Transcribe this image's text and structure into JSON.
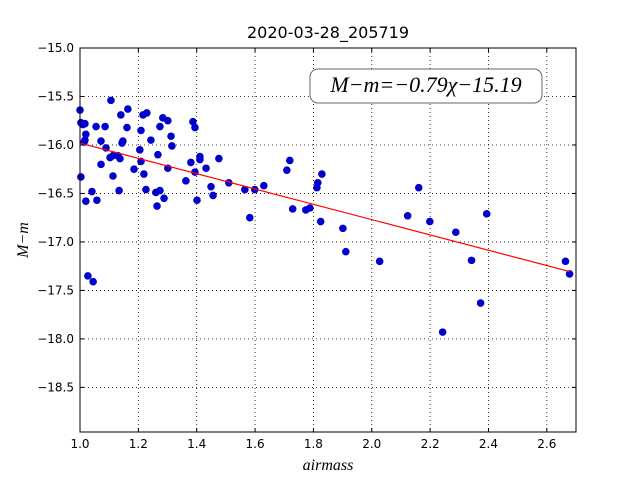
{
  "chart_data": {
    "type": "scatter",
    "title": "2020-03-28_205719",
    "xlabel": "airmass",
    "ylabel": "M−m",
    "annotation": "M−m=−0.79χ−15.19",
    "x": [
      1.0,
      1.003,
      1.01,
      1.017,
      1.02,
      1.017,
      1.014,
      1.003,
      1.02,
      1.027,
      1.045,
      1.041,
      1.055,
      1.058,
      1.072,
      1.072,
      1.086,
      1.089,
      1.103,
      1.106,
      1.113,
      1.113,
      1.13,
      1.137,
      1.134,
      1.14,
      1.144,
      1.147,
      1.161,
      1.164,
      1.185,
      1.205,
      1.209,
      1.209,
      1.216,
      1.229,
      1.219,
      1.226,
      1.243,
      1.26,
      1.264,
      1.274,
      1.267,
      1.274,
      1.284,
      1.288,
      1.301,
      1.301,
      1.312,
      1.315,
      1.363,
      1.38,
      1.387,
      1.394,
      1.394,
      1.401,
      1.411,
      1.411,
      1.432,
      1.449,
      1.456,
      1.476,
      1.51,
      1.565,
      1.582,
      1.599,
      1.63,
      1.709,
      1.719,
      1.729,
      1.774,
      1.788,
      1.812,
      1.815,
      1.825,
      1.829,
      1.901,
      1.911,
      2.027,
      2.123,
      2.161,
      2.199,
      2.243,
      2.288,
      2.342,
      2.373,
      2.394,
      2.664,
      2.678
    ],
    "values": [
      -15.64,
      -15.77,
      -15.79,
      -15.78,
      -15.89,
      -15.95,
      -15.97,
      -16.33,
      -16.58,
      -17.35,
      -17.41,
      -16.48,
      -15.81,
      -16.57,
      -16.2,
      -15.96,
      -15.81,
      -16.03,
      -16.13,
      -15.54,
      -16.11,
      -16.32,
      -16.11,
      -16.14,
      -16.47,
      -15.69,
      -15.98,
      -15.96,
      -15.82,
      -15.63,
      -16.25,
      -16.05,
      -16.17,
      -15.85,
      -15.69,
      -15.67,
      -16.3,
      -16.46,
      -15.95,
      -16.49,
      -16.63,
      -16.47,
      -16.1,
      -15.81,
      -15.72,
      -16.55,
      -15.75,
      -16.24,
      -15.91,
      -16.01,
      -16.37,
      -16.18,
      -15.76,
      -15.82,
      -16.28,
      -16.57,
      -16.12,
      -16.15,
      -16.24,
      -16.43,
      -16.52,
      -16.14,
      -16.39,
      -16.46,
      -16.75,
      -16.46,
      -16.42,
      -16.26,
      -16.16,
      -16.66,
      -16.67,
      -16.65,
      -16.44,
      -16.39,
      -16.79,
      -16.3,
      -16.86,
      -17.1,
      -17.2,
      -16.73,
      -16.44,
      -16.79,
      -17.93,
      -16.9,
      -17.19,
      -17.63,
      -16.71,
      -17.2,
      -17.33
    ],
    "color": "#0000cc",
    "fit": {
      "x": [
        1.0,
        2.68
      ],
      "values": [
        -15.98,
        -17.307
      ],
      "color": "#ff0000"
    },
    "xlim": [
      1.0,
      2.7
    ],
    "ylim": [
      -15.0,
      -18.96
    ],
    "xticks": [
      {
        "value": 1.0,
        "label": "1.0"
      },
      {
        "value": 1.2,
        "label": "1.2"
      },
      {
        "value": 1.4,
        "label": "1.4"
      },
      {
        "value": 1.6,
        "label": "1.6"
      },
      {
        "value": 1.8,
        "label": "1.8"
      },
      {
        "value": 2.0,
        "label": "2.0"
      },
      {
        "value": 2.2,
        "label": "2.2"
      },
      {
        "value": 2.4,
        "label": "2.4"
      },
      {
        "value": 2.6,
        "label": "2.6"
      }
    ],
    "yticks": [
      {
        "value": -15.0,
        "label": "−15.0"
      },
      {
        "value": -15.5,
        "label": "−15.5"
      },
      {
        "value": -16.0,
        "label": "−16.0"
      },
      {
        "value": -16.5,
        "label": "−16.5"
      },
      {
        "value": -17.0,
        "label": "−17.0"
      },
      {
        "value": -17.5,
        "label": "−17.5"
      },
      {
        "value": -18.0,
        "label": "−18.0"
      },
      {
        "value": -18.5,
        "label": "−18.5"
      }
    ],
    "grid": true
  }
}
